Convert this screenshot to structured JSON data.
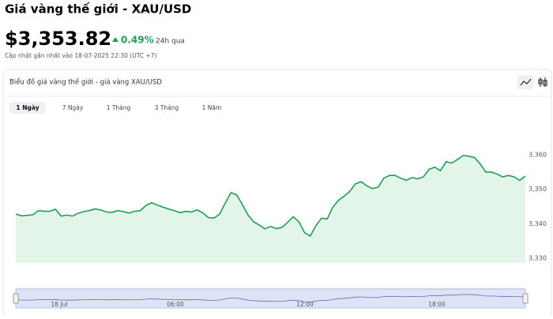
{
  "header": {
    "title": "Giá vàng thế giới - XAU/USD",
    "price": "$3,353.82",
    "change": "0.49%",
    "period": "24h qua",
    "updated": "Cập nhật gần nhất vào 18-07-2025 22:30 (UTC +7)"
  },
  "card": {
    "title": "Biểu đồ giá vàng thế giới - giá vàng XAU/USD",
    "tabs": [
      "1 Ngày",
      "7 Ngày",
      "1 Tháng",
      "3 Tháng",
      "1 Năm"
    ]
  },
  "chart_data": {
    "type": "line",
    "color": "#1f9d55",
    "area_color": "#e3f5e8",
    "values": [
      3342.8,
      3342.3,
      3342.4,
      3342.6,
      3343.8,
      3343.6,
      3343.6,
      3344.2,
      3342.2,
      3342.5,
      3342.2,
      3343.0,
      3343.5,
      3343.8,
      3344.3,
      3344.0,
      3343.4,
      3343.3,
      3343.8,
      3343.5,
      3343.1,
      3343.6,
      3343.8,
      3345.3,
      3346.1,
      3345.4,
      3344.8,
      3344.3,
      3343.8,
      3343.2,
      3343.6,
      3343.4,
      3344.0,
      3343.2,
      3341.8,
      3341.6,
      3342.8,
      3346.0,
      3349.0,
      3348.4,
      3345.6,
      3342.6,
      3340.6,
      3339.6,
      3338.5,
      3339.2,
      3338.6,
      3338.9,
      3340.4,
      3342.0,
      3340.6,
      3337.4,
      3336.4,
      3339.4,
      3341.6,
      3341.4,
      3344.8,
      3346.8,
      3348.0,
      3349.4,
      3351.6,
      3352.2,
      3351.0,
      3350.2,
      3350.6,
      3353.2,
      3354.0,
      3354.0,
      3353.2,
      3352.6,
      3353.4,
      3353.0,
      3353.6,
      3355.8,
      3356.4,
      3355.4,
      3358.0,
      3357.6,
      3358.6,
      3359.8,
      3359.6,
      3359.2,
      3357.4,
      3355.0,
      3355.0,
      3354.4,
      3353.6,
      3354.0,
      3353.6,
      3352.6,
      3353.82
    ],
    "ylim": [
      3328,
      3362
    ],
    "yticks": [
      {
        "value": 3330,
        "label": "3,330"
      },
      {
        "value": 3340,
        "label": "3,340"
      },
      {
        "value": 3350,
        "label": "3,350"
      },
      {
        "value": 3360,
        "label": "3,360"
      }
    ],
    "navigator_labels": [
      "18 Jul",
      "06:00",
      "12:00",
      "18:00"
    ]
  }
}
